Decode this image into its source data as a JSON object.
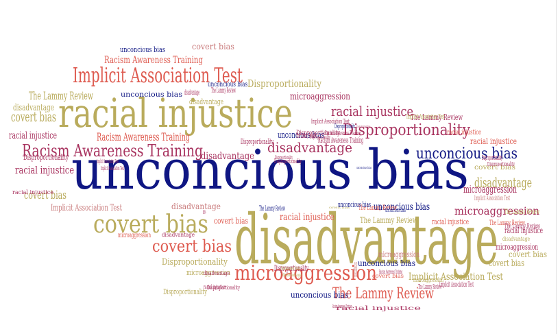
{
  "palette": {
    "navy": "#0f1683",
    "olive": "#b9ab5c",
    "coral": "#de5a4f",
    "plum": "#a8335f",
    "rose": "#c97b7c"
  },
  "words": [
    {
      "text": "unconcious bias",
      "color": "navy"
    },
    {
      "text": "racial injustice",
      "color": "olive"
    },
    {
      "text": "disadvantage",
      "color": "olive"
    },
    {
      "text": "covert bias",
      "color": "olive"
    },
    {
      "text": "Implicit Association Test",
      "color": "coral"
    },
    {
      "text": "Racism Awareness Training",
      "color": "plum"
    },
    {
      "text": "Disproportionality",
      "color": "plum"
    },
    {
      "text": "microaggression",
      "color": "coral"
    },
    {
      "text": "covert bias",
      "color": "coral"
    },
    {
      "text": "racial injustice",
      "color": "plum"
    },
    {
      "text": "disadvantage",
      "color": "plum"
    },
    {
      "text": "unconcious bias",
      "color": "navy"
    },
    {
      "text": "The Lammy Review",
      "color": "olive"
    },
    {
      "text": "covert bias",
      "color": "olive"
    },
    {
      "text": "microaggression",
      "color": "plum"
    },
    {
      "text": "Racism Awareness Training",
      "color": "coral"
    },
    {
      "text": "Implicit Association Test",
      "color": "olive"
    },
    {
      "text": "Disproportionality",
      "color": "olive"
    },
    {
      "text": "racial injustice",
      "color": "coral"
    },
    {
      "text": "disadvantage",
      "color": "rose"
    },
    {
      "text": "covert bias",
      "color": "olive"
    },
    {
      "text": "microaggression",
      "color": "plum"
    },
    {
      "text": "unconcious bias",
      "color": "navy"
    },
    {
      "text": "disadvantage",
      "color": "plum"
    },
    {
      "text": "Disproportionality",
      "color": "olive"
    },
    {
      "text": "The Lammy Review",
      "color": "plum"
    },
    {
      "text": "Implicit Association Test",
      "color": "rose"
    },
    {
      "text": "covert bias",
      "color": "rose"
    },
    {
      "text": "racial injustice",
      "color": "plum"
    },
    {
      "text": "unconcious bias",
      "color": "navy"
    },
    {
      "text": "covert bias",
      "color": "coral"
    },
    {
      "text": "Racism Awareness Training",
      "color": "coral"
    },
    {
      "text": "microaggression",
      "color": "coral"
    },
    {
      "text": "Disproportionality",
      "color": "olive"
    },
    {
      "text": "racial injustice",
      "color": "coral"
    },
    {
      "text": "The Lammy Review",
      "color": "coral"
    },
    {
      "text": "unconcious bias",
      "color": "navy"
    },
    {
      "text": "The Lammy Review",
      "color": "olive"
    },
    {
      "text": "disadvantage",
      "color": "olive"
    },
    {
      "text": "Disproportionality",
      "color": "plum"
    },
    {
      "text": "microaggression",
      "color": "plum"
    },
    {
      "text": "unconcious bias",
      "color": "navy"
    },
    {
      "text": "disadvantage",
      "color": "plum"
    },
    {
      "text": "racial injustice",
      "color": "coral"
    },
    {
      "text": "microaggression",
      "color": "olive"
    },
    {
      "text": "covert bias",
      "color": "olive"
    },
    {
      "text": "Disproportionality",
      "color": "plum"
    },
    {
      "text": "unconcious bias",
      "color": "navy"
    },
    {
      "text": "racial injustice",
      "color": "plum"
    },
    {
      "text": "Disproportionality",
      "color": "plum"
    },
    {
      "text": "disadvantage",
      "color": "olive"
    },
    {
      "text": "covert bias",
      "color": "olive"
    },
    {
      "text": "Implicit Association Test",
      "color": "rose"
    },
    {
      "text": "racial injustice",
      "color": "plum"
    },
    {
      "text": "disadvantage",
      "color": "olive"
    },
    {
      "text": "The Lammy Review",
      "color": "coral"
    },
    {
      "text": "The Lammy Review",
      "color": "plum"
    },
    {
      "text": "microaggression",
      "color": "plum"
    },
    {
      "text": "racial injustice",
      "color": "coral"
    },
    {
      "text": "Disproportionality",
      "color": "plum"
    },
    {
      "text": "disadvantage",
      "color": "olive"
    },
    {
      "text": "covert bias",
      "color": "olive"
    },
    {
      "text": "Implicit Association Test",
      "color": "olive"
    },
    {
      "text": "The Lammy Review",
      "color": "olive"
    },
    {
      "text": "racial injustice",
      "color": "plum"
    },
    {
      "text": "unconcious bias",
      "color": "navy"
    },
    {
      "text": "Implicit Association Test",
      "color": "plum"
    },
    {
      "text": "Disproportionality",
      "color": "plum"
    },
    {
      "text": "Racism Awareness Training",
      "color": "plum"
    },
    {
      "text": "Racism Awareness Training",
      "color": "plum"
    },
    {
      "text": "Implicit Association Test",
      "color": "plum"
    },
    {
      "text": "Implicit Association Test",
      "color": "plum"
    },
    {
      "text": "The Lammy Review",
      "color": "coral"
    },
    {
      "text": "racial injustice",
      "color": "plum"
    },
    {
      "text": "Disproportionality",
      "color": "navy"
    },
    {
      "text": "The Lammy Review",
      "color": "navy"
    },
    {
      "text": "disadvantage",
      "color": "plum"
    },
    {
      "text": "Disproportionality",
      "color": "plum"
    },
    {
      "text": "Disproportionality",
      "color": "plum"
    },
    {
      "text": "covert bias",
      "color": "coral"
    },
    {
      "text": "disadvantage",
      "color": "plum"
    },
    {
      "text": "unconcious bias",
      "color": "navy"
    },
    {
      "text": "unconcious bias",
      "color": "navy"
    },
    {
      "text": "covert bias",
      "color": "olive"
    },
    {
      "text": "unconcious bias",
      "color": "navy"
    },
    {
      "text": "Racism Awareness Training",
      "color": "plum"
    },
    {
      "text": "Racism Awareness Training",
      "color": "plum"
    },
    {
      "text": "racial injustice",
      "color": "plum"
    },
    {
      "text": "The Lammy Review",
      "color": "plum"
    },
    {
      "text": "racial injustice",
      "color": "plum"
    },
    {
      "text": "The Lammy Review",
      "color": "plum"
    },
    {
      "text": "Disproportionality",
      "color": "plum"
    },
    {
      "text": "Implicit Association Test",
      "color": "plum"
    },
    {
      "text": "Disproportionality",
      "color": "plum"
    },
    {
      "text": "microaggression",
      "color": "rose"
    },
    {
      "text": "microaggression",
      "color": "olive"
    },
    {
      "text": "unconcious bias",
      "color": "navy"
    },
    {
      "text": "covert bias",
      "color": "plum"
    },
    {
      "text": "microaggression",
      "color": "rose"
    },
    {
      "text": "disadvantage",
      "color": "olive"
    },
    {
      "text": "The Lammy Review",
      "color": "plum"
    },
    {
      "text": "Racism Awareness Training",
      "color": "olive"
    },
    {
      "text": "Disproportionality",
      "color": "plum"
    }
  ]
}
